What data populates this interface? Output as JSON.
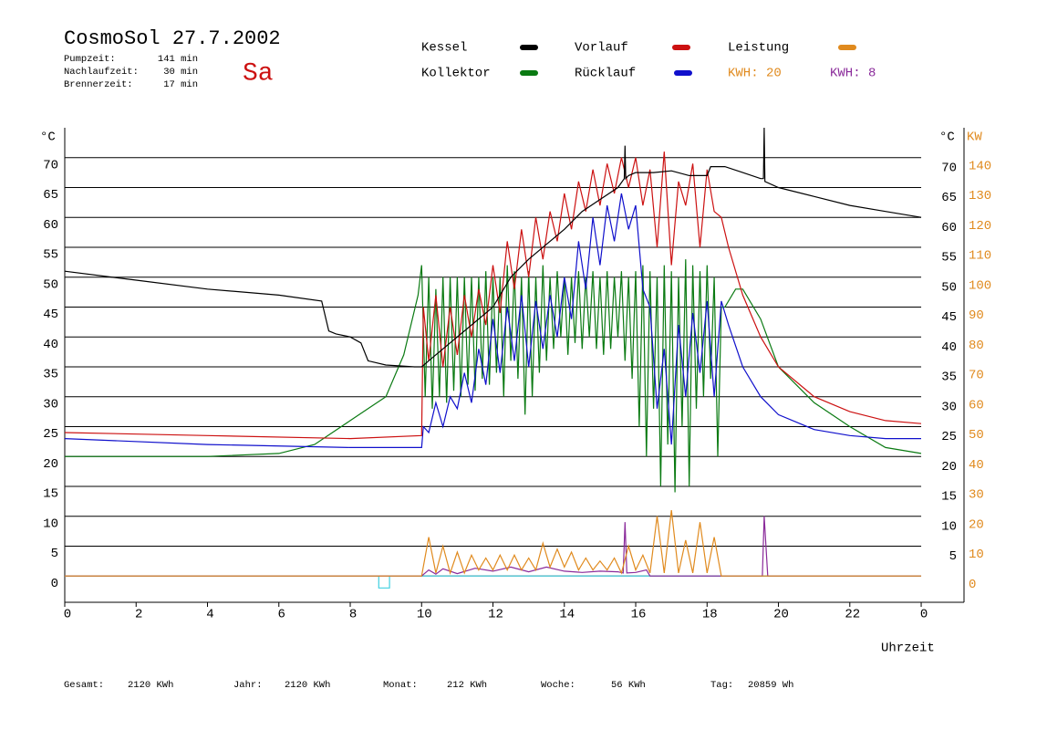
{
  "chart_data": {
    "type": "line",
    "title": "CosmoSol 27.7.2002",
    "day": "Sa",
    "info": [
      {
        "label": "Pumpzeit:",
        "value": "141 min"
      },
      {
        "label": "Nachlaufzeit:",
        "value": "30 min"
      },
      {
        "label": "Brennerzeit:",
        "value": "17 min"
      }
    ],
    "totals": [
      {
        "label": "Gesamt:",
        "value": "2120 KWh"
      },
      {
        "label": "Jahr:",
        "value": "2120 KWh"
      },
      {
        "label": "Monat:",
        "value": "212 KWh"
      },
      {
        "label": "Woche:",
        "value": "56 KWh"
      },
      {
        "label": "Tag:",
        "value": "20859 Wh"
      }
    ],
    "annotations": [
      {
        "text": "KWH: 20",
        "color": "#e08a1e"
      },
      {
        "text": "KWH: 8",
        "color": "#8a2a9a"
      }
    ],
    "xlabel": "Uhrzeit",
    "ylabel": "°C",
    "y2label_c": "°C",
    "y2label": "KW",
    "xlim": [
      0,
      25.2
    ],
    "xticks": [
      0,
      2,
      4,
      6,
      8,
      10,
      12,
      14,
      16,
      18,
      20,
      22,
      {
        "value": 24,
        "label": "0"
      }
    ],
    "ylim": [
      -4.4,
      75
    ],
    "yticks": [
      0,
      5,
      10,
      15,
      20,
      25,
      30,
      35,
      40,
      45,
      50,
      55,
      60,
      65,
      70
    ],
    "y2lim": [
      -8.8,
      150
    ],
    "y2ticks": [
      0,
      10,
      20,
      30,
      40,
      50,
      60,
      70,
      80,
      90,
      100,
      110,
      120,
      130,
      140
    ],
    "grid": true,
    "series": [
      {
        "name": "Kessel",
        "color": "#000000",
        "x": [
          0,
          2,
          4,
          6,
          7.2,
          7.4,
          7.6,
          8,
          8.3,
          8.5,
          9,
          9.8,
          10,
          10.3,
          11,
          12,
          12.5,
          13,
          13.5,
          14,
          14.5,
          15,
          15.5,
          15.68,
          15.7,
          15.72,
          15.8,
          16,
          16.5,
          17,
          17.5,
          18,
          18.1,
          18.5,
          19,
          19.5,
          19.58,
          19.6,
          19.62,
          20,
          21,
          22,
          23,
          24
        ],
        "values": [
          51,
          49.5,
          48,
          47,
          46,
          41,
          40.5,
          40,
          39,
          36,
          35.3,
          35,
          35,
          36.5,
          40,
          45,
          50,
          53,
          55.5,
          58,
          61,
          63,
          65,
          66.5,
          72,
          66.5,
          67,
          67.5,
          67.5,
          67.8,
          67,
          67,
          68.5,
          68.5,
          67.5,
          66.5,
          66.5,
          75,
          66,
          65,
          63.5,
          62,
          61,
          60
        ]
      },
      {
        "name": "Kollektor",
        "color": "#0a7a12",
        "x": [
          0,
          2,
          4,
          6,
          7,
          8,
          8.5,
          9,
          9.5,
          9.9,
          10,
          10.1,
          10.2,
          10.3,
          10.4,
          10.5,
          10.6,
          10.7,
          10.8,
          10.9,
          11.0,
          11.1,
          11.2,
          11.3,
          11.4,
          11.5,
          11.6,
          11.7,
          11.8,
          11.9,
          12.0,
          12.1,
          12.2,
          12.3,
          12.4,
          12.5,
          12.6,
          12.7,
          12.8,
          12.9,
          13.0,
          13.1,
          13.2,
          13.3,
          13.4,
          13.5,
          13.6,
          13.7,
          13.8,
          13.9,
          14.0,
          14.1,
          14.2,
          14.3,
          14.4,
          14.5,
          14.6,
          14.7,
          14.8,
          14.9,
          15.0,
          15.1,
          15.2,
          15.3,
          15.4,
          15.5,
          15.6,
          15.7,
          15.8,
          15.9,
          16.0,
          16.1,
          16.2,
          16.3,
          16.4,
          16.5,
          16.6,
          16.7,
          16.8,
          16.9,
          17.0,
          17.1,
          17.2,
          17.3,
          17.4,
          17.5,
          17.6,
          17.7,
          17.8,
          17.9,
          18.0,
          18.1,
          18.2,
          18.3,
          18.4,
          18.5,
          18.8,
          19,
          19.5,
          20,
          21,
          22,
          23,
          24
        ],
        "values": [
          20,
          20,
          20,
          20.5,
          22,
          26,
          28,
          30,
          37,
          47,
          52,
          30,
          50,
          28,
          48,
          30,
          50,
          29,
          50,
          31,
          50,
          30,
          50,
          32,
          50,
          31,
          50,
          33,
          51,
          32,
          50,
          34,
          50,
          30,
          52,
          36,
          51,
          33,
          50,
          27,
          51,
          30,
          50,
          34,
          52,
          36,
          50,
          38,
          51,
          40,
          50,
          37,
          50,
          39,
          51,
          38,
          50,
          40,
          51,
          38,
          50,
          37,
          51,
          38,
          50,
          40,
          51,
          36,
          50,
          33,
          51,
          25,
          52,
          20,
          51,
          28,
          50,
          15,
          52,
          22,
          51,
          14,
          50,
          25,
          53,
          15,
          52,
          28,
          51,
          30,
          52,
          33,
          50,
          20,
          45,
          45,
          48,
          48,
          43,
          35,
          29,
          25,
          21.5,
          20.5
        ]
      },
      {
        "name": "Vorlauf",
        "color": "#cc1111",
        "x": [
          0,
          4,
          8,
          10,
          10.05,
          10.2,
          10.4,
          10.6,
          10.8,
          11.0,
          11.2,
          11.4,
          11.6,
          11.8,
          12.0,
          12.2,
          12.4,
          12.6,
          12.8,
          13.0,
          13.2,
          13.4,
          13.6,
          13.8,
          14.0,
          14.2,
          14.4,
          14.6,
          14.8,
          15.0,
          15.2,
          15.4,
          15.6,
          15.8,
          16.0,
          16.2,
          16.4,
          16.6,
          16.8,
          17.0,
          17.2,
          17.4,
          17.6,
          17.8,
          18.0,
          18.2,
          18.4,
          18.6,
          19,
          19.5,
          20,
          21,
          22,
          23,
          24
        ],
        "values": [
          24,
          23.5,
          23,
          23.5,
          45,
          36,
          47,
          35,
          45,
          37,
          47,
          40,
          48,
          42,
          52,
          44,
          56,
          48,
          58,
          50,
          60,
          53,
          61,
          56,
          64,
          58,
          66,
          61,
          68,
          62,
          69,
          64,
          70,
          65,
          70,
          62,
          68,
          55,
          71,
          52,
          66,
          62,
          69,
          55,
          68,
          61,
          60,
          55,
          47,
          40,
          35,
          30,
          27.5,
          26,
          25.5
        ]
      },
      {
        "name": "Rücklauf",
        "color": "#1010cc",
        "x": [
          0,
          4,
          8,
          10,
          10.05,
          10.2,
          10.4,
          10.6,
          10.8,
          11.0,
          11.2,
          11.4,
          11.6,
          11.8,
          12.0,
          12.2,
          12.4,
          12.6,
          12.8,
          13.0,
          13.2,
          13.4,
          13.6,
          13.8,
          14.0,
          14.2,
          14.4,
          14.6,
          14.8,
          15.0,
          15.2,
          15.4,
          15.6,
          15.8,
          16.0,
          16.2,
          16.4,
          16.6,
          16.8,
          17.0,
          17.2,
          17.4,
          17.6,
          17.8,
          18.0,
          18.2,
          18.4,
          18.6,
          19,
          19.5,
          20,
          21,
          22,
          23,
          24
        ],
        "values": [
          23,
          22,
          21.5,
          21.5,
          25,
          24,
          29,
          25,
          30,
          28,
          34,
          29,
          38,
          32,
          43,
          34,
          45,
          36,
          47,
          35,
          46,
          38,
          47,
          40,
          50,
          43,
          56,
          48,
          60,
          52,
          62,
          56,
          64,
          58,
          62,
          48,
          45,
          28,
          38,
          22,
          42,
          30,
          44,
          34,
          46,
          30,
          46,
          42,
          35,
          30,
          27,
          24.5,
          23.5,
          23,
          23
        ]
      },
      {
        "name": "Leistung",
        "color": "#e08a1e",
        "axis": "y2",
        "x": [
          0,
          10.0,
          10.2,
          10.4,
          10.6,
          10.8,
          11.0,
          11.2,
          11.4,
          11.6,
          11.8,
          12.0,
          12.2,
          12.4,
          12.6,
          12.8,
          13.0,
          13.2,
          13.4,
          13.6,
          13.8,
          14.0,
          14.2,
          14.4,
          14.6,
          14.8,
          15.0,
          15.2,
          15.4,
          15.6,
          15.8,
          16.0,
          16.2,
          16.4,
          16.6,
          16.8,
          17.0,
          17.2,
          17.4,
          17.6,
          17.8,
          18.0,
          18.2,
          18.4,
          24
        ],
        "values": [
          0,
          0,
          13,
          1,
          10,
          1,
          8,
          1,
          7,
          2,
          6,
          2,
          7,
          2,
          7,
          2,
          6,
          2,
          11,
          3,
          9,
          3,
          8,
          2,
          6,
          2,
          5,
          2,
          6,
          1,
          10,
          2,
          7,
          1,
          20,
          1,
          22,
          1,
          12,
          1,
          18,
          1,
          13,
          0,
          0
        ]
      },
      {
        "color": "#8a2a9a",
        "x": [
          0,
          10,
          10.2,
          10.4,
          10.6,
          11,
          11.5,
          12,
          12.5,
          13,
          13.5,
          14,
          14.5,
          15,
          15.5,
          15.65,
          15.7,
          15.75,
          16,
          16.3,
          16.4,
          19.55,
          19.6,
          19.7,
          24
        ],
        "values": [
          0,
          0,
          1,
          0.3,
          1.2,
          0.4,
          1.3,
          0.8,
          1.5,
          0.7,
          1.5,
          0.8,
          0.6,
          0.8,
          0.7,
          0.5,
          9,
          0.5,
          0.6,
          1.0,
          0,
          0,
          10,
          0,
          0
        ]
      },
      {
        "color": "#40d0e0",
        "x": [
          0,
          8.8,
          8.8,
          9.1,
          9.1,
          24
        ],
        "values": [
          0,
          0,
          -2,
          -2,
          0,
          0
        ]
      }
    ]
  }
}
